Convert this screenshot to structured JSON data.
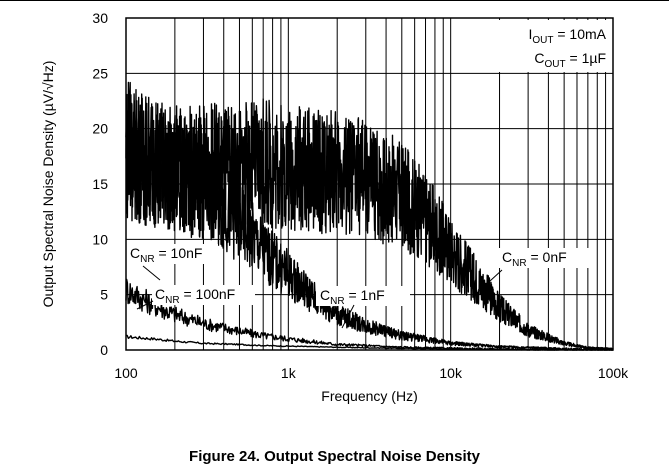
{
  "figure": {
    "caption": "Figure 24. Output Spectral Noise Density"
  },
  "chart_data": {
    "type": "line",
    "xscale": "log",
    "xlim": [
      100,
      100000
    ],
    "ylim": [
      0,
      30
    ],
    "xlabel": "Frequency (Hz)",
    "ylabel": "Output Spectral Noise Density (µV/√Hz)",
    "x_ticks": [
      100,
      1000,
      10000,
      100000
    ],
    "x_tick_labels": [
      "100",
      "1k",
      "10k",
      "100k"
    ],
    "y_ticks": [
      0,
      5,
      10,
      15,
      20,
      25,
      30
    ],
    "grid": true,
    "conditions": [
      {
        "main": "I",
        "sub": "OUT",
        "rest": " = 10mA"
      },
      {
        "main": "C",
        "sub": "OUT",
        "rest": " = 1µF"
      }
    ],
    "annotations": [
      {
        "main": "C",
        "sub": "NR",
        "rest": " = 10nF",
        "series": 1
      },
      {
        "main": "C",
        "sub": "NR",
        "rest": " = 100nF",
        "series": 0
      },
      {
        "main": "C",
        "sub": "NR",
        "rest": " = 1nF",
        "series": 2
      },
      {
        "main": "C",
        "sub": "NR",
        "rest": " = 0nF",
        "series": 3
      }
    ],
    "series": [
      {
        "x": [
          100,
          150,
          200,
          300,
          500,
          700,
          1000,
          2000,
          5000,
          10000,
          20000,
          50000,
          100000
        ],
        "y": [
          1.2,
          1.0,
          0.8,
          0.6,
          0.5,
          0.4,
          0.35,
          0.25,
          0.15,
          0.1,
          0.05,
          0.02,
          0.01
        ]
      },
      {
        "x": [
          100,
          120,
          150,
          200,
          300,
          500,
          700,
          1000,
          1500,
          2000,
          3000,
          5000,
          7000,
          10000,
          20000,
          50000,
          100000
        ],
        "y": [
          5.5,
          4.8,
          4.0,
          3.2,
          2.4,
          1.7,
          1.3,
          1.0,
          0.7,
          0.5,
          0.4,
          0.25,
          0.2,
          0.15,
          0.08,
          0.03,
          0.01
        ]
      },
      {
        "x": [
          100,
          130,
          200,
          300,
          400,
          500,
          700,
          1000,
          1500,
          2000,
          3000,
          5000,
          7000,
          10000,
          20000,
          50000,
          100000
        ],
        "y": [
          19,
          17,
          15.5,
          14.5,
          13,
          11.5,
          9,
          6.8,
          4.5,
          3.2,
          2.2,
          1.3,
          1.0,
          0.6,
          0.3,
          0.1,
          0.02
        ]
      },
      {
        "x": [
          100,
          150,
          200,
          300,
          500,
          700,
          1000,
          2000,
          3000,
          5000,
          7000,
          10000,
          15000,
          20000,
          30000,
          50000,
          70000,
          100000
        ],
        "y": [
          18,
          17,
          16.5,
          16.5,
          16.5,
          16.8,
          16.5,
          16,
          15.5,
          14,
          12,
          9,
          6,
          3.8,
          1.8,
          0.6,
          0.2,
          0.05
        ]
      }
    ]
  }
}
